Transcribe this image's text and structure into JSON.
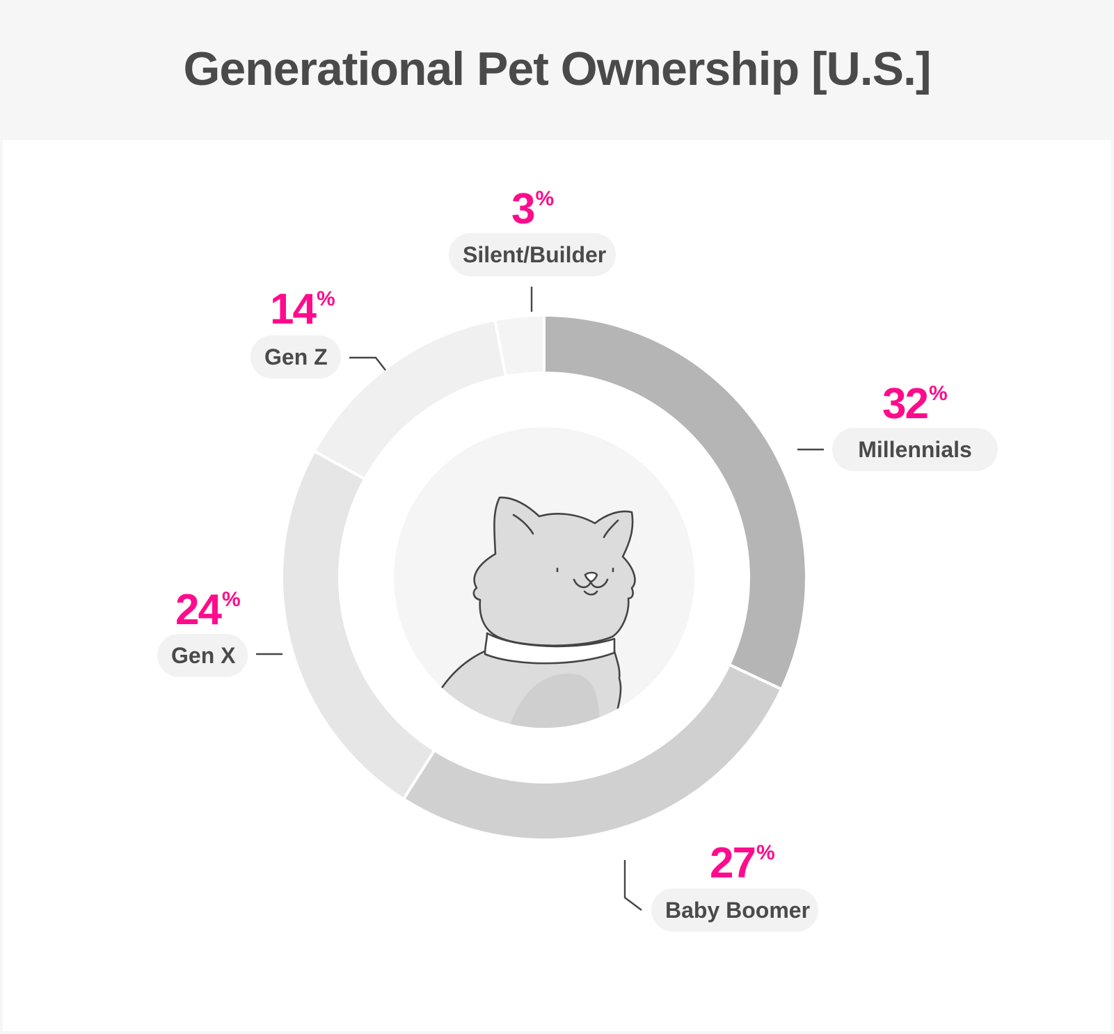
{
  "header": {
    "title": "Generational Pet Ownership [U.S.]"
  },
  "colors": {
    "accent": "#ff0b8c",
    "label_text": "#4a4a4a",
    "pill_bg": "#f2f2f2",
    "millennials": "#b5b5b5",
    "baby_boomer": "#d0d0d0",
    "gen_x": "#e6e6e6",
    "gen_z": "#f0f0f0",
    "silent_builder": "#f4f4f4"
  },
  "segments": [
    {
      "label": "Millennials",
      "value": "32",
      "unit": "%"
    },
    {
      "label": "Baby Boomer",
      "value": "27",
      "unit": "%"
    },
    {
      "label": "Gen X",
      "value": "24",
      "unit": "%"
    },
    {
      "label": "Gen Z",
      "value": "14",
      "unit": "%"
    },
    {
      "label": "Silent/Builder",
      "value": "3",
      "unit": "%"
    }
  ],
  "chart_data": {
    "type": "pie",
    "subtype": "donut",
    "title": "Generational Pet Ownership [U.S.]",
    "categories": [
      "Millennials",
      "Baby Boomer",
      "Gen X",
      "Gen Z",
      "Silent/Builder"
    ],
    "values": [
      32,
      27,
      24,
      14,
      3
    ],
    "unit": "%",
    "start_angle": "12 o'clock, clockwise",
    "legend": "none (direct labels with callout lines)",
    "center_illustration": "cat-icon"
  }
}
